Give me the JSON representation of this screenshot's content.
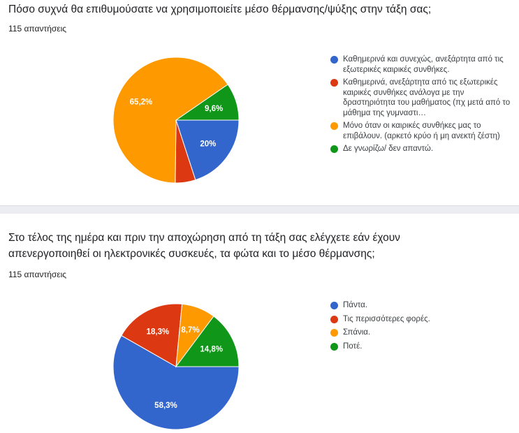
{
  "questions": [
    {
      "title": "Πόσο συχνά θα επιθυμούσατε να χρησιμοποιείτε μέσο θέρμανσης/ψύξης στην τάξη σας;",
      "responses": "115 απαντήσεις"
    },
    {
      "title": "Στο τέλος της ημέρα και πριν την αποχώρηση από τη τάξη σας ελέγχετε εάν έχουν απενεργοποιηθεί οι ηλεκτρονικές συσκευές, τα φώτα και το μέσο θέρμανσης;",
      "responses": "115 απαντήσεις"
    }
  ],
  "chart_data": [
    {
      "type": "pie",
      "categories": [
        "Καθημερινά και συνεχώς, ανεξάρτητα από τις εξωτερικές καιρικές συνθήκες.",
        "Καθημερινά, ανεξάρτητα από τις εξωτερικές καιρικές συνθήκες ανάλογα με την δραστηριότητα του μαθήματος (πχ μετά από το μάθημα της γυμναστι…",
        "Μόνο όταν οι καιρικές συνθήκες μας το επιβάλουν. (αρκετό κρύο ή μη ανεκτή ζέστη)",
        "Δε γνωρίζω/ δεν απαντώ."
      ],
      "values": [
        20,
        5.2,
        65.2,
        9.6
      ],
      "data_labels": [
        "20%",
        "",
        "65,2%",
        "9,6%"
      ],
      "colors": [
        "#3366cc",
        "#dc3912",
        "#ff9900",
        "#109618"
      ],
      "legend_position": "right"
    },
    {
      "type": "pie",
      "categories": [
        "Πάντα.",
        "Τις περισσότερες φορές.",
        "Σπάνια.",
        "Ποτέ."
      ],
      "values": [
        58.3,
        18.3,
        8.7,
        14.8
      ],
      "data_labels": [
        "58,3%",
        "18,3%",
        "8,7%",
        "14,8%"
      ],
      "colors": [
        "#3366cc",
        "#dc3912",
        "#ff9900",
        "#109618"
      ],
      "legend_position": "right"
    }
  ]
}
